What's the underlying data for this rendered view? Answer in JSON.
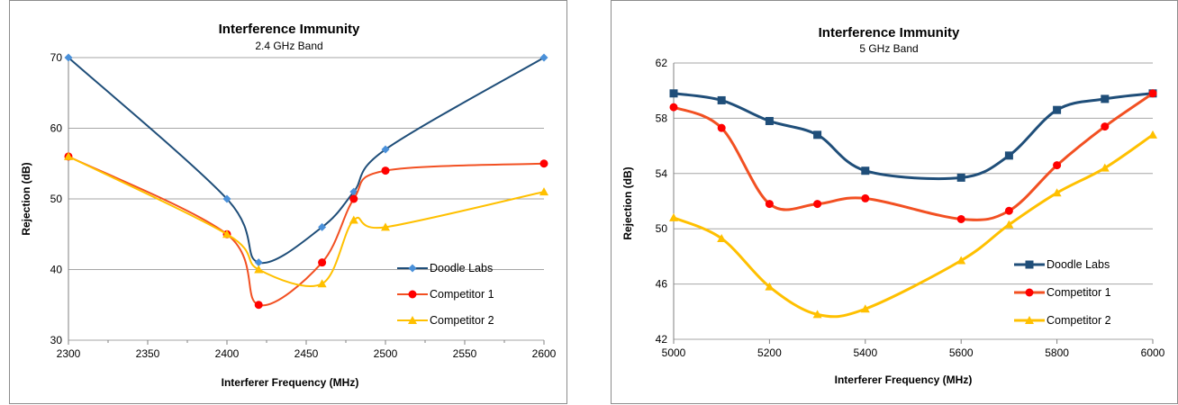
{
  "chart_data": [
    {
      "type": "line",
      "title": "Interference Immunity",
      "subtitle": "2.4 GHz Band",
      "xlabel": "Interferer Frequency (MHz)",
      "ylabel": "Rejection (dB)",
      "xlim": [
        2300,
        2600
      ],
      "ylim": [
        30,
        70
      ],
      "xticks": [
        2300,
        2350,
        2400,
        2450,
        2500,
        2550,
        2600
      ],
      "yticks": [
        30,
        40,
        50,
        60,
        70
      ],
      "grid": "horizontal",
      "legend_position": "bottom-right",
      "smooth": true,
      "series": [
        {
          "name": "Doodle Labs",
          "color": "#4a90d9",
          "line_color": "#1f4e79",
          "marker": "diamond",
          "x": [
            2300,
            2400,
            2420,
            2460,
            2480,
            2500,
            2600
          ],
          "y": [
            70,
            50,
            41,
            46,
            51,
            57,
            70
          ]
        },
        {
          "name": "Competitor 1",
          "color": "#ff0000",
          "line_color": "#f25022",
          "marker": "circle",
          "x": [
            2300,
            2400,
            2420,
            2460,
            2480,
            2500,
            2600
          ],
          "y": [
            56,
            45,
            35,
            41,
            50,
            54,
            55
          ]
        },
        {
          "name": "Competitor 2",
          "color": "#ffc000",
          "line_color": "#ffc000",
          "marker": "triangle",
          "x": [
            2300,
            2400,
            2420,
            2460,
            2480,
            2500,
            2600
          ],
          "y": [
            56,
            45,
            40,
            38,
            47,
            46,
            51
          ]
        }
      ]
    },
    {
      "type": "line",
      "title": "Interference Immunity",
      "subtitle": "5 GHz Band",
      "xlabel": "Interferer Frequency (MHz)",
      "ylabel": "Rejection (dB)",
      "xlim": [
        5000,
        6000
      ],
      "ylim": [
        42,
        62
      ],
      "xticks": [
        5000,
        5200,
        5400,
        5600,
        5800,
        6000
      ],
      "yticks": [
        42,
        46,
        50,
        54,
        58,
        62
      ],
      "grid": "horizontal",
      "legend_position": "bottom-right",
      "smooth": true,
      "series": [
        {
          "name": "Doodle Labs",
          "color": "#1f4e79",
          "line_color": "#1f4e79",
          "marker": "square",
          "x": [
            5000,
            5100,
            5200,
            5300,
            5400,
            5600,
            5700,
            5800,
            5900,
            6000
          ],
          "y": [
            59.8,
            59.3,
            57.8,
            56.8,
            54.2,
            53.7,
            55.3,
            58.6,
            59.4,
            59.8
          ]
        },
        {
          "name": "Competitor 1",
          "color": "#ff0000",
          "line_color": "#f25022",
          "marker": "circle",
          "x": [
            5000,
            5100,
            5200,
            5300,
            5400,
            5600,
            5700,
            5800,
            5900,
            6000
          ],
          "y": [
            58.8,
            57.3,
            51.8,
            51.8,
            52.2,
            50.7,
            51.3,
            54.6,
            57.4,
            59.8
          ]
        },
        {
          "name": "Competitor 2",
          "color": "#ffc000",
          "line_color": "#ffc000",
          "marker": "triangle",
          "x": [
            5000,
            5100,
            5200,
            5300,
            5400,
            5600,
            5700,
            5800,
            5900,
            6000
          ],
          "y": [
            50.8,
            49.3,
            45.8,
            43.8,
            44.2,
            47.7,
            50.3,
            52.6,
            54.4,
            56.8
          ]
        }
      ]
    }
  ]
}
